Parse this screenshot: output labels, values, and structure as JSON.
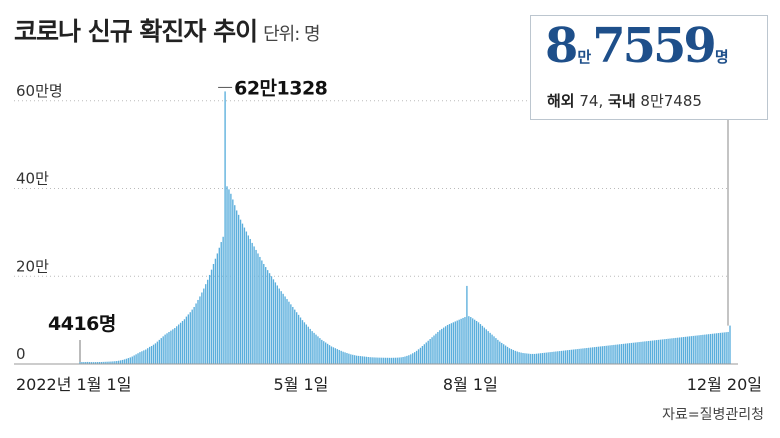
{
  "header": {
    "title": "코로나 신규 확진자 추이",
    "unit": "단위: 명"
  },
  "callout": {
    "big_man": "8",
    "big_man_unit": "만",
    "big_rest": "7559",
    "big_unit": "명",
    "overseas_label": "해외",
    "overseas_value": "74,",
    "domestic_label": "국내",
    "domestic_value": "8만7485"
  },
  "source": "자료=질병관리청",
  "colors": {
    "bar": "#5aaedc",
    "accent": "#1e4f8a",
    "axis": "#999999",
    "grid": "#bbbbbb"
  },
  "chart_data": {
    "type": "bar",
    "x_start": "2022-01-01",
    "x_end": "2022-12-20",
    "ylim": [
      0,
      620000
    ],
    "ytick_labels": [
      "0",
      "20만",
      "40만",
      "60만명"
    ],
    "ytick_values": [
      0,
      200000,
      400000,
      600000
    ],
    "xtick_labels": [
      "2022년 1월 1일",
      "5월 1일",
      "8월 1일",
      "12월 20일"
    ],
    "xtick_dates": [
      "2022-01-01",
      "2022-05-01",
      "2022-08-01",
      "2022-12-20"
    ],
    "grid": true,
    "annotations": [
      {
        "text": "4416명",
        "date": "2022-01-01",
        "value": 4416
      },
      {
        "text": "62만1328",
        "date": "2022-03-17",
        "value": 621328
      }
    ],
    "daily_values": [
      4416,
      4500,
      4400,
      4600,
      4700,
      4400,
      4300,
      4200,
      4300,
      4400,
      4500,
      4600,
      4800,
      5000,
      5200,
      5400,
      5600,
      5900,
      6300,
      6800,
      7500,
      8300,
      9300,
      10500,
      12000,
      13500,
      15000,
      17000,
      19500,
      22000,
      24500,
      27000,
      29000,
      31000,
      33000,
      36000,
      39000,
      41000,
      44000,
      47000,
      51000,
      55000,
      59000,
      63000,
      67000,
      70000,
      73000,
      76000,
      79000,
      82000,
      86000,
      90000,
      94000,
      98000,
      102000,
      108000,
      113000,
      118000,
      124000,
      130000,
      138000,
      146000,
      154000,
      163000,
      172000,
      182000,
      192000,
      203000,
      215000,
      228000,
      240000,
      252000,
      265000,
      278000,
      290000,
      621328,
      405000,
      398000,
      388000,
      375000,
      362000,
      350000,
      340000,
      329000,
      320000,
      311000,
      302000,
      293000,
      285000,
      276000,
      268000,
      260000,
      252000,
      244000,
      236000,
      228000,
      221000,
      214000,
      207000,
      200000,
      193000,
      186000,
      179000,
      172000,
      166000,
      160000,
      154000,
      148000,
      142000,
      136000,
      130000,
      124000,
      118000,
      112000,
      106000,
      100000,
      95000,
      90000,
      85000,
      80000,
      75000,
      71000,
      67000,
      63000,
      59000,
      55000,
      52000,
      49000,
      46000,
      43000,
      40000,
      38000,
      36000,
      34000,
      32000,
      30000,
      28000,
      26500,
      25000,
      23500,
      22000,
      21000,
      20000,
      19000,
      18500,
      18000,
      17500,
      17000,
      16500,
      16000,
      15500,
      15200,
      15000,
      14800,
      14600,
      14500,
      14400,
      14300,
      14200,
      14200,
      14100,
      14100,
      14200,
      14300,
      14500,
      14800,
      15200,
      16000,
      17000,
      18500,
      20000,
      22000,
      24500,
      27000,
      30000,
      33500,
      37000,
      41000,
      45000,
      49000,
      53000,
      57000,
      61000,
      65000,
      69000,
      73000,
      77000,
      80000,
      83000,
      86000,
      89000,
      91000,
      93000,
      95000,
      97000,
      99000,
      101000,
      103000,
      105000,
      107000,
      178000,
      109000,
      107000,
      104000,
      101000,
      98000,
      95000,
      91000,
      87000,
      83000,
      79000,
      75000,
      71000,
      67000,
      63000,
      59000,
      55000,
      51000,
      48000,
      45000,
      42000,
      39000,
      36000,
      34000,
      32000,
      30000,
      28500,
      27000,
      26000,
      25000,
      24500,
      24000,
      23500,
      23000,
      23000,
      23000,
      23500,
      24000,
      24500,
      25000,
      25500,
      26000,
      26500,
      27000,
      27500,
      28000,
      28500,
      29000,
      29500,
      30000,
      30500,
      31000,
      31500,
      32000,
      32500,
      33000,
      33500,
      34000,
      34500,
      35000,
      35500,
      36000,
      36500,
      37000,
      37500,
      38000,
      38500,
      39000,
      39500,
      40000,
      40500,
      41000,
      41500,
      42000,
      42500,
      43000,
      43500,
      44000,
      44500,
      45000,
      45500,
      46000,
      46500,
      47000,
      47500,
      48000,
      48500,
      49000,
      49500,
      50000,
      50500,
      51000,
      51500,
      52000,
      52500,
      53000,
      53500,
      54000,
      54500,
      55000,
      55500,
      56000,
      56500,
      57000,
      57500,
      58000,
      58500,
      59000,
      59500,
      60000,
      60500,
      61000,
      61500,
      62000,
      62500,
      63000,
      63500,
      64000,
      64500,
      65000,
      65500,
      66000,
      66500,
      67000,
      67500,
      68000,
      68500,
      69000,
      69500,
      70000,
      70500,
      71000,
      71500,
      72000,
      72500,
      73000,
      87559
    ],
    "last_value": 87559
  }
}
